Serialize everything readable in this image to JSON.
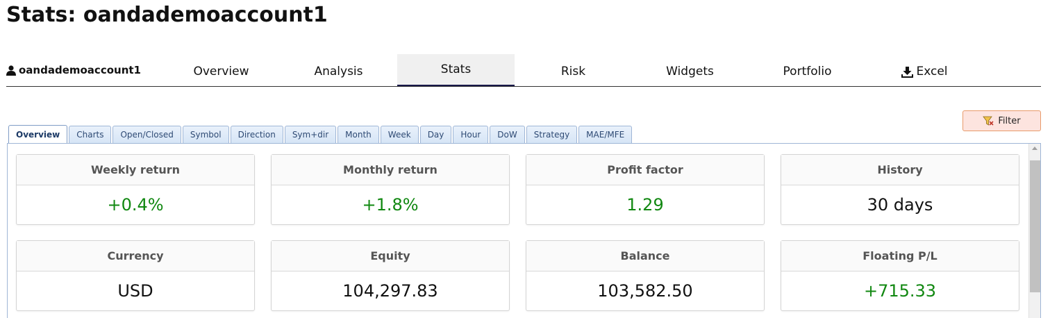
{
  "page": {
    "title": "Stats: oandademoaccount1"
  },
  "nav": {
    "account": "oandademoaccount1",
    "items": [
      {
        "label": "Overview"
      },
      {
        "label": "Analysis"
      },
      {
        "label": "Stats",
        "active": true
      },
      {
        "label": "Risk"
      },
      {
        "label": "Widgets"
      },
      {
        "label": "Portfolio"
      },
      {
        "label": "Excel",
        "icon": "download-icon"
      }
    ]
  },
  "filter": {
    "label": "Filter",
    "icon": "filter-icon"
  },
  "subtabs": [
    "Overview",
    "Charts",
    "Open/Closed",
    "Symbol",
    "Direction",
    "Sym+dir",
    "Month",
    "Week",
    "Day",
    "Hour",
    "DoW",
    "Strategy",
    "MAE/MFE"
  ],
  "cards": [
    {
      "label": "Weekly return",
      "value": "+0.4%",
      "status": "positive"
    },
    {
      "label": "Monthly return",
      "value": "+1.8%",
      "status": "positive"
    },
    {
      "label": "Profit factor",
      "value": "1.29",
      "status": "positive"
    },
    {
      "label": "History",
      "value": "30 days",
      "status": "neutral"
    },
    {
      "label": "Currency",
      "value": "USD",
      "status": "neutral"
    },
    {
      "label": "Equity",
      "value": "104,297.83",
      "status": "neutral"
    },
    {
      "label": "Balance",
      "value": "103,582.50",
      "status": "neutral"
    },
    {
      "label": "Floating P/L",
      "value": "+715.33",
      "status": "positive"
    }
  ],
  "colors": {
    "positive": "#118811",
    "tab_active_border": "#1a1a4a",
    "filter_bg": "#fde4df"
  }
}
